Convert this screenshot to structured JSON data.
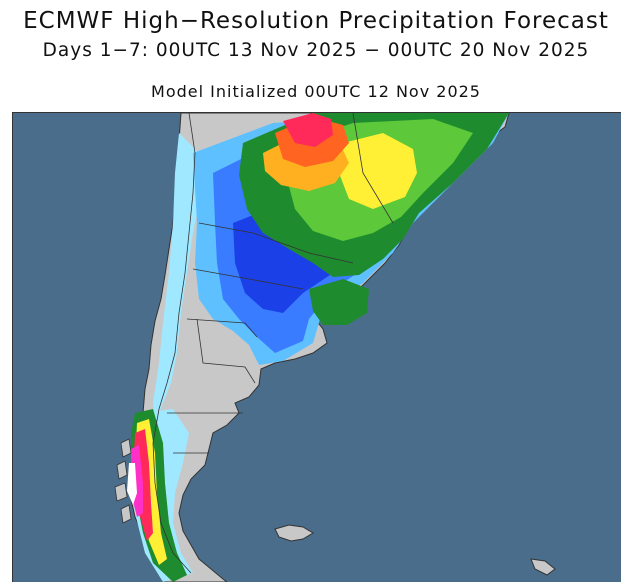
{
  "title": "ECMWF High−Resolution Precipitation Forecast",
  "subtitle": "Days 1−7: 00UTC 13 Nov 2025 − 00UTC 20 Nov 2025",
  "init_line": "Model Initialized 00UTC 12 Nov 2025",
  "map": {
    "ocean_color": "#4a6d8c",
    "land_color": "#c8c8c8",
    "border_color": "#333333",
    "precip_colors": [
      "#a0e8ff",
      "#5fc0ff",
      "#3a7cff",
      "#1c40e8",
      "#1e8c2e",
      "#5cc83a",
      "#c8e83c",
      "#fff035",
      "#ffb020",
      "#ff6420",
      "#ff2a5a",
      "#ff30c8",
      "#c8a0e8",
      "#ffffff"
    ]
  }
}
